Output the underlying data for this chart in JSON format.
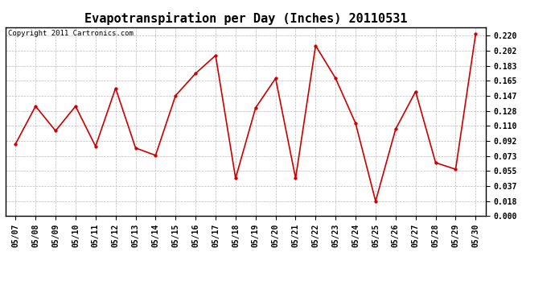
{
  "title": "Evapotranspiration per Day (Inches) 20110531",
  "copyright": "Copyright 2011 Cartronics.com",
  "dates": [
    "05/07",
    "05/08",
    "05/09",
    "05/10",
    "05/11",
    "05/12",
    "05/13",
    "05/14",
    "05/15",
    "05/16",
    "05/17",
    "05/18",
    "05/19",
    "05/20",
    "05/21",
    "05/22",
    "05/23",
    "05/24",
    "05/25",
    "05/26",
    "05/27",
    "05/28",
    "05/29",
    "05/30"
  ],
  "values": [
    0.088,
    0.134,
    0.104,
    0.134,
    0.085,
    0.156,
    0.083,
    0.074,
    0.147,
    0.174,
    0.196,
    0.046,
    0.132,
    0.168,
    0.046,
    0.208,
    0.168,
    0.113,
    0.018,
    0.106,
    0.152,
    0.065,
    0.057,
    0.222
  ],
  "line_color": "#cc0000",
  "marker": "o",
  "marker_size": 2.5,
  "bg_color": "#ffffff",
  "grid_color": "#bbbbbb",
  "ylim": [
    0.0,
    0.2305
  ],
  "yticks": [
    0.0,
    0.018,
    0.037,
    0.055,
    0.073,
    0.092,
    0.11,
    0.128,
    0.147,
    0.165,
    0.183,
    0.202,
    0.22
  ],
  "title_fontsize": 11,
  "tick_fontsize": 7,
  "copyright_fontsize": 6.5
}
